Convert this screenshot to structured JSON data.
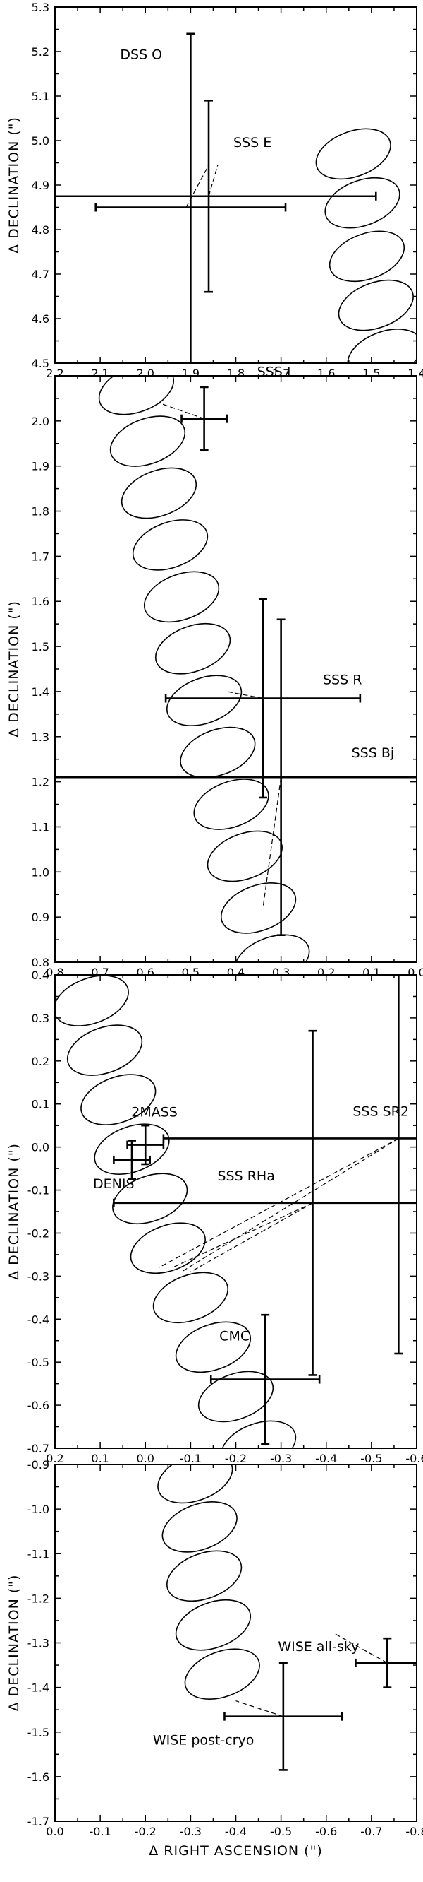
{
  "chart_data": [
    {
      "type": "scatter",
      "xlim": [
        2.2,
        1.4
      ],
      "ylim": [
        4.5,
        5.3
      ],
      "xticks": [
        "2.2",
        "2.1",
        "2.0",
        "1.9",
        "1.8",
        "1.7",
        "1.6",
        "1.5",
        "1.4"
      ],
      "yticks": [
        "4.5",
        "4.6",
        "4.7",
        "4.8",
        "4.9",
        "5.0",
        "5.1",
        "5.2",
        "5.3"
      ],
      "ylabel": "Δ DECLINATION (\")",
      "xlabel": "",
      "ellipse_centers": [
        {
          "x": 1.54,
          "y": 4.97
        },
        {
          "x": 1.52,
          "y": 4.86
        },
        {
          "x": 1.51,
          "y": 4.74
        },
        {
          "x": 1.49,
          "y": 4.63
        },
        {
          "x": 1.47,
          "y": 4.52
        }
      ],
      "points": [
        {
          "label": "DSS O",
          "x": 1.9,
          "y": 4.85,
          "xerr": 0.21,
          "yerr": 0.39
        },
        {
          "label": "SSS E",
          "x": 1.86,
          "y": 4.875,
          "xerr": 0.37,
          "yerr": 0.215
        }
      ],
      "connectors": [
        {
          "from": [
            1.91,
            4.85
          ],
          "to": [
            1.86,
            4.945
          ]
        },
        {
          "from": [
            1.86,
            4.875
          ],
          "to": [
            1.84,
            4.945
          ]
        }
      ]
    },
    {
      "type": "scatter",
      "xlim": [
        0.8,
        0.0
      ],
      "ylim": [
        0.8,
        2.1
      ],
      "xticks": [
        "0.8",
        "0.7",
        "0.6",
        "0.5",
        "0.4",
        "0.3",
        "0.2",
        "0.1",
        "0.0"
      ],
      "yticks": [
        "0.8",
        "0.9",
        "1.0",
        "1.1",
        "1.2",
        "1.3",
        "1.4",
        "1.5",
        "1.6",
        "1.7",
        "1.8",
        "1.9",
        "2.0"
      ],
      "ylabel": "Δ DECLINATION (\")",
      "xlabel": "",
      "ellipse_centers": [
        {
          "x": 0.62,
          "y": 2.07
        },
        {
          "x": 0.595,
          "y": 1.955
        },
        {
          "x": 0.57,
          "y": 1.84
        },
        {
          "x": 0.545,
          "y": 1.725
        },
        {
          "x": 0.52,
          "y": 1.61
        },
        {
          "x": 0.495,
          "y": 1.495
        },
        {
          "x": 0.47,
          "y": 1.38
        },
        {
          "x": 0.44,
          "y": 1.265
        },
        {
          "x": 0.41,
          "y": 1.15
        },
        {
          "x": 0.38,
          "y": 1.035
        },
        {
          "x": 0.35,
          "y": 0.92
        },
        {
          "x": 0.32,
          "y": 0.805
        }
      ],
      "points": [
        {
          "label": "SSS I",
          "x": 0.47,
          "y": 2.005,
          "xerr": 0.05,
          "yerr": 0.07
        },
        {
          "label": "SSS R",
          "x": 0.34,
          "y": 1.385,
          "xerr": 0.215,
          "yerr": 0.22
        },
        {
          "label": "SSS Bj",
          "x": 0.3,
          "y": 1.21,
          "xerr": 0.59,
          "yerr": 0.35
        }
      ],
      "connectors": [
        {
          "from": [
            0.47,
            2.005
          ],
          "to": [
            0.57,
            2.04
          ]
        },
        {
          "from": [
            0.34,
            1.385
          ],
          "to": [
            0.42,
            1.4
          ]
        },
        {
          "from": [
            0.3,
            1.21
          ],
          "to": [
            0.34,
            0.92
          ]
        }
      ]
    },
    {
      "type": "scatter",
      "xlim": [
        0.2,
        -0.6
      ],
      "ylim": [
        -0.7,
        0.4
      ],
      "xticks": [
        "0.2",
        "0.1",
        "0.0",
        "-0.1",
        "-0.2",
        "-0.3",
        "-0.4",
        "-0.5",
        "-0.6"
      ],
      "yticks": [
        "-0.7",
        "-0.6",
        "-0.5",
        "-0.4",
        "-0.3",
        "-0.2",
        "-0.1",
        "0.0",
        "0.1",
        "0.2",
        "0.3",
        "0.4"
      ],
      "ylabel": "Δ DECLINATION (\")",
      "xlabel": "",
      "ellipse_centers": [
        {
          "x": 0.12,
          "y": 0.34
        },
        {
          "x": 0.09,
          "y": 0.225
        },
        {
          "x": 0.06,
          "y": 0.11
        },
        {
          "x": 0.03,
          "y": -0.005
        },
        {
          "x": -0.01,
          "y": -0.12
        },
        {
          "x": -0.05,
          "y": -0.235
        },
        {
          "x": -0.1,
          "y": -0.35
        },
        {
          "x": -0.15,
          "y": -0.465
        },
        {
          "x": -0.2,
          "y": -0.58
        },
        {
          "x": -0.25,
          "y": -0.695
        }
      ],
      "points": [
        {
          "label": "2MASS",
          "x": 0.0,
          "y": 0.005,
          "xerr": 0.04,
          "yerr": 0.045
        },
        {
          "label": "DENIS",
          "x": 0.03,
          "y": -0.03,
          "xerr": 0.04,
          "yerr": 0.045
        },
        {
          "label": "SSS SR2",
          "x": -0.56,
          "y": 0.02,
          "xerr": 0.52,
          "yerr": 0.5
        },
        {
          "label": "SSS RHa",
          "x": -0.37,
          "y": -0.13,
          "xerr": 0.44,
          "yerr": 0.4
        },
        {
          "label": "CMC",
          "x": -0.265,
          "y": -0.54,
          "xerr": 0.12,
          "yerr": 0.15
        }
      ],
      "connectors": [
        {
          "from": [
            -0.56,
            0.02
          ],
          "to": [
            -0.03,
            -0.28
          ]
        },
        {
          "from": [
            -0.37,
            -0.13
          ],
          "to": [
            -0.06,
            -0.28
          ]
        },
        {
          "from": [
            -0.56,
            0.02
          ],
          "to": [
            -0.08,
            -0.29
          ]
        },
        {
          "from": [
            -0.37,
            -0.13
          ],
          "to": [
            -0.1,
            -0.29
          ]
        }
      ]
    },
    {
      "type": "scatter",
      "xlim": [
        0.0,
        -0.8
      ],
      "ylim": [
        -1.7,
        -0.9
      ],
      "xticks": [
        "0.0",
        "-0.1",
        "-0.2",
        "-0.3",
        "-0.4",
        "-0.5",
        "-0.6",
        "-0.7",
        "-0.8"
      ],
      "yticks": [
        "-1.7",
        "-1.6",
        "-1.5",
        "-1.4",
        "-1.3",
        "-1.2",
        "-1.1",
        "-1.0",
        "-0.9"
      ],
      "ylabel": "Δ DECLINATION (\")",
      "xlabel": "Δ RIGHT ASCENSION (\")",
      "ellipse_centers": [
        {
          "x": -0.31,
          "y": -0.93
        },
        {
          "x": -0.32,
          "y": -1.04
        },
        {
          "x": -0.33,
          "y": -1.15
        },
        {
          "x": -0.35,
          "y": -1.26
        },
        {
          "x": -0.37,
          "y": -1.37
        }
      ],
      "points": [
        {
          "label": "WISE all-sky",
          "x": -0.735,
          "y": -1.345,
          "xerr": 0.07,
          "yerr": 0.055
        },
        {
          "label": "WISE post-cryo",
          "x": -0.505,
          "y": -1.465,
          "xerr": 0.13,
          "yerr": 0.12
        }
      ],
      "connectors": [
        {
          "from": [
            -0.735,
            -1.345
          ],
          "to": [
            -0.62,
            -1.28
          ]
        },
        {
          "from": [
            -0.505,
            -1.465
          ],
          "to": [
            -0.4,
            -1.43
          ]
        }
      ]
    }
  ]
}
